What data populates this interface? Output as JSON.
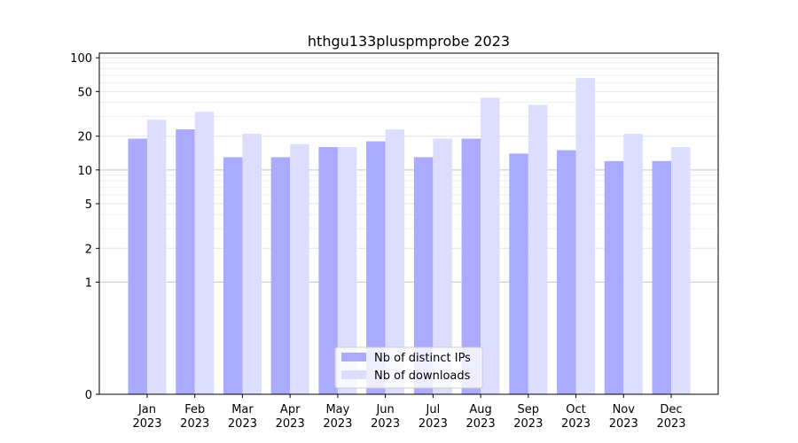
{
  "chart_data": {
    "type": "bar",
    "title": "hthgu133pluspmprobe 2023",
    "xlabel": "",
    "ylabel": "",
    "yscale": "symlog",
    "ylim": [
      0,
      110
    ],
    "yticks": [
      0,
      1,
      2,
      5,
      10,
      20,
      50,
      100
    ],
    "categories": [
      {
        "month": "Jan",
        "year": "2023"
      },
      {
        "month": "Feb",
        "year": "2023"
      },
      {
        "month": "Mar",
        "year": "2023"
      },
      {
        "month": "Apr",
        "year": "2023"
      },
      {
        "month": "May",
        "year": "2023"
      },
      {
        "month": "Jun",
        "year": "2023"
      },
      {
        "month": "Jul",
        "year": "2023"
      },
      {
        "month": "Aug",
        "year": "2023"
      },
      {
        "month": "Sep",
        "year": "2023"
      },
      {
        "month": "Oct",
        "year": "2023"
      },
      {
        "month": "Nov",
        "year": "2023"
      },
      {
        "month": "Dec",
        "year": "2023"
      }
    ],
    "series": [
      {
        "name": "Nb of distinct IPs",
        "color": "#aaaaff",
        "values": [
          19,
          23,
          13,
          13,
          16,
          18,
          13,
          19,
          14,
          15,
          12,
          12
        ]
      },
      {
        "name": "Nb of downloads",
        "color": "#ddddff",
        "values": [
          28,
          33,
          21,
          17,
          16,
          23,
          19,
          44,
          38,
          66,
          21,
          16
        ]
      }
    ],
    "grid": true,
    "legend_position": "lower-center"
  }
}
